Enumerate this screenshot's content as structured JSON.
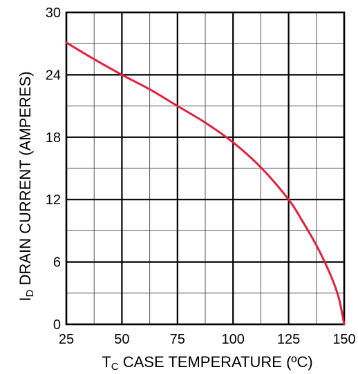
{
  "chart_data": {
    "type": "line",
    "xlabel": {
      "symbol": "T",
      "subscript": "C",
      "text": " CASE TEMPERATURE (ºC)"
    },
    "ylabel": {
      "symbol": "I",
      "subscript": "D",
      "text": " DRAIN CURRENT (AMPERES)"
    },
    "xlim": [
      25,
      150
    ],
    "ylim": [
      0,
      30
    ],
    "x_ticks": [
      "25",
      "50",
      "75",
      "100",
      "125",
      "150"
    ],
    "y_ticks": [
      "0",
      "6",
      "12",
      "18",
      "24",
      "30"
    ],
    "x_minor_step": 12.5,
    "y_minor_step": 3,
    "grid": true,
    "series": [
      {
        "color": "#e0223c",
        "x": [
          25,
          37.5,
          50,
          62.5,
          75,
          87.5,
          100,
          112.5,
          125,
          131,
          137.5,
          143.75,
          147.5,
          150
        ],
        "y": [
          27.1,
          25.5,
          24.0,
          22.6,
          21.0,
          19.4,
          17.5,
          15.1,
          12.0,
          10.0,
          7.6,
          4.8,
          2.6,
          0
        ]
      }
    ]
  }
}
